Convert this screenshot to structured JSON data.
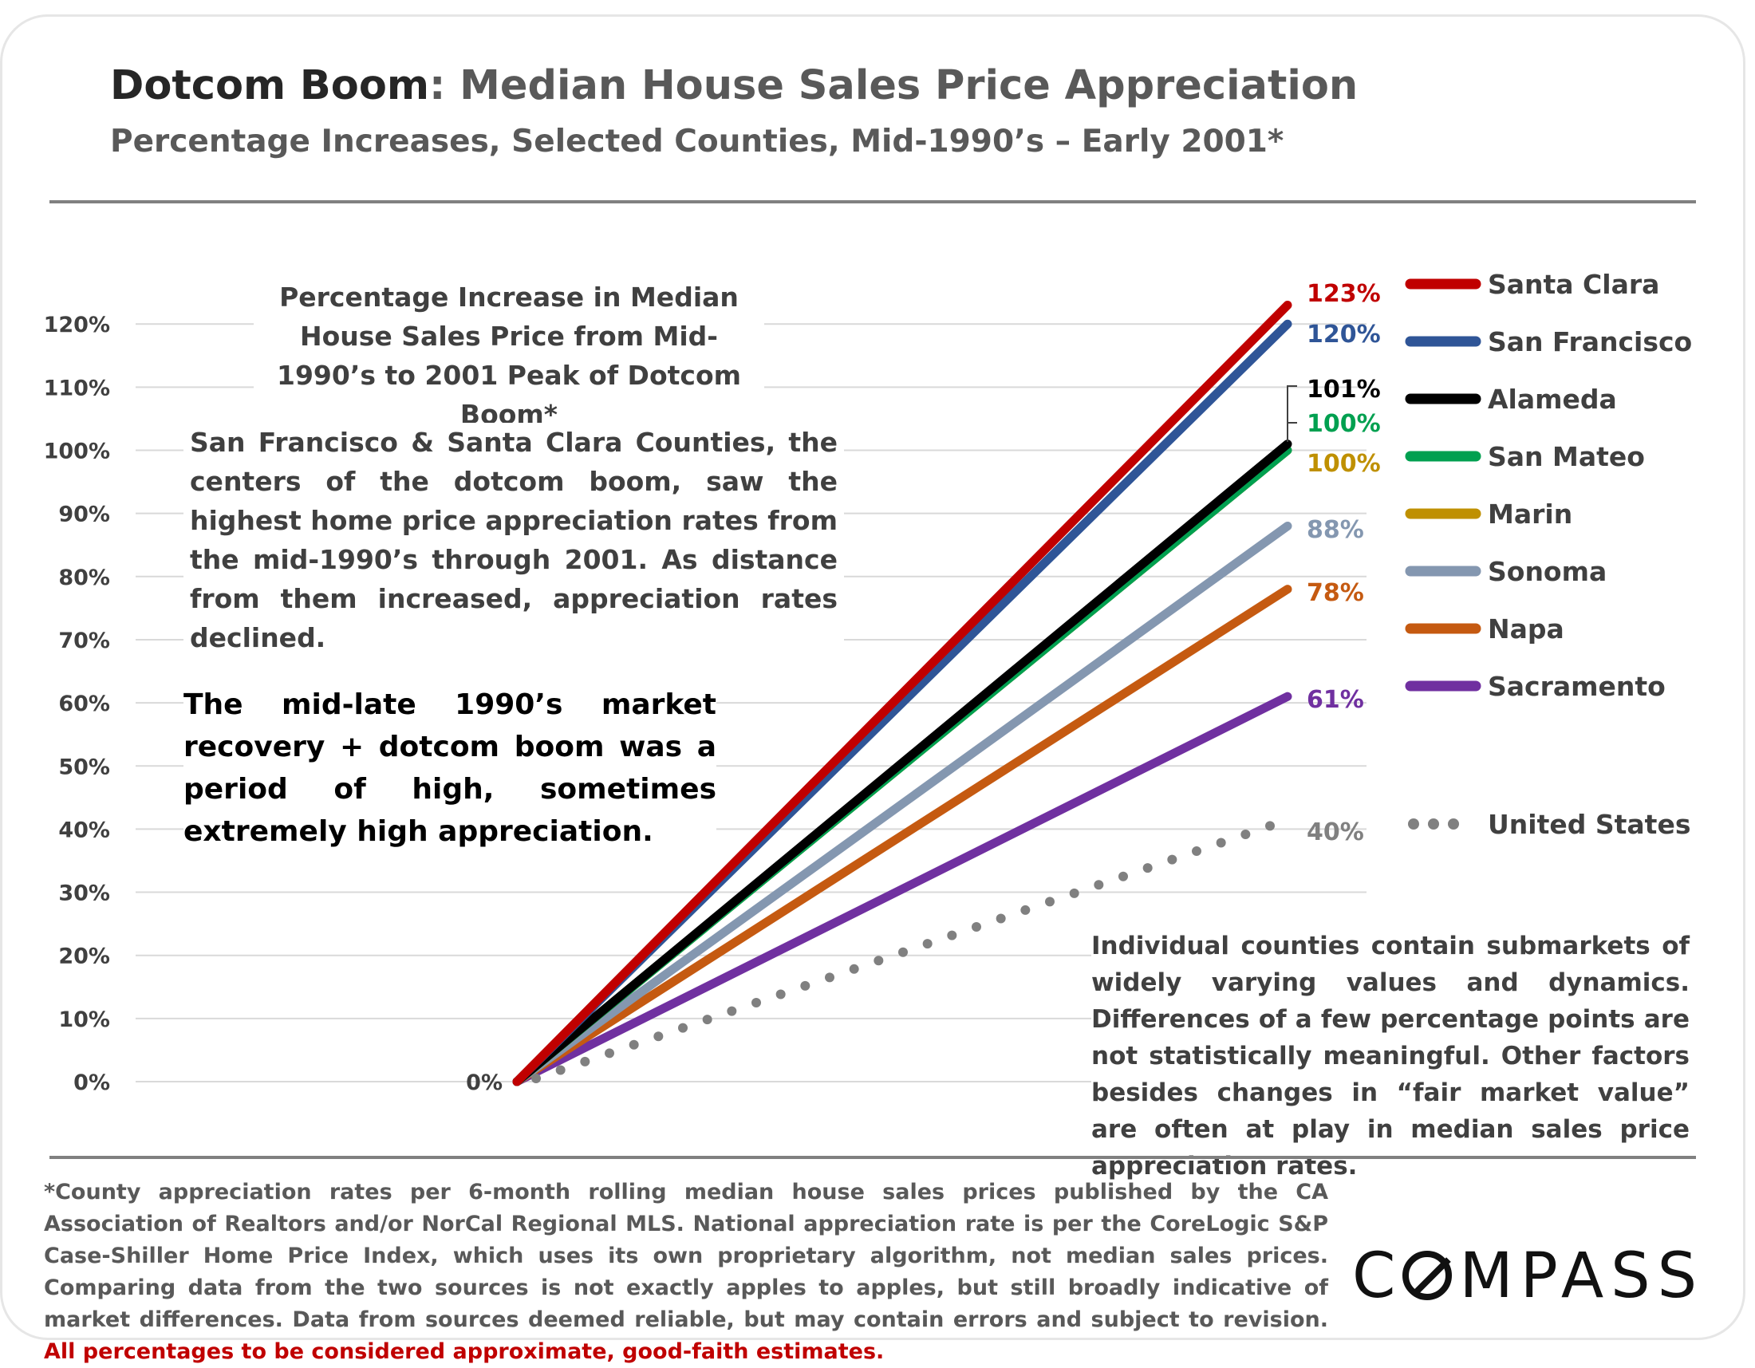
{
  "header": {
    "title_lead": "Dotcom Boom",
    "title_rest": ": Median House Sales Price Appreciation",
    "subtitle": "Percentage Increases, Selected Counties, Mid-1990’s – Early 2001*"
  },
  "chart_data": {
    "type": "line",
    "title": "Percentage Increase in Median House Sales Price from Mid-1990’s to 2001 Peak of Dotcom Boom*",
    "ylim": [
      0,
      120
    ],
    "y_ticks": [
      "0%",
      "10%",
      "20%",
      "30%",
      "40%",
      "50%",
      "60%",
      "70%",
      "80%",
      "90%",
      "100%",
      "110%",
      "120%"
    ],
    "grid": true,
    "legend_position": "right",
    "start_label": "0%",
    "series": [
      {
        "name": "Santa Clara",
        "start": 0,
        "end": 123,
        "end_label": "123%",
        "color": "#c00000",
        "style": "solid"
      },
      {
        "name": "San Francisco",
        "start": 0,
        "end": 120,
        "end_label": "120%",
        "color": "#2f5597",
        "style": "solid"
      },
      {
        "name": "Alameda",
        "start": 0,
        "end": 101,
        "end_label": "101%",
        "color": "#000000",
        "style": "solid"
      },
      {
        "name": "San Mateo",
        "start": 0,
        "end": 100,
        "end_label": "100%",
        "color": "#00a050",
        "style": "solid"
      },
      {
        "name": "Marin",
        "start": 0,
        "end": 100,
        "end_label": "100%",
        "color": "#bf9000",
        "style": "solid"
      },
      {
        "name": "Sonoma",
        "start": 0,
        "end": 88,
        "end_label": "88%",
        "color": "#8497b0",
        "style": "solid"
      },
      {
        "name": "Napa",
        "start": 0,
        "end": 78,
        "end_label": "78%",
        "color": "#c55a11",
        "style": "solid"
      },
      {
        "name": "Sacramento",
        "start": 0,
        "end": 61,
        "end_label": "61%",
        "color": "#7030a0",
        "style": "solid"
      },
      {
        "name": "United States",
        "start": 0,
        "end": 40,
        "end_label": "40%",
        "color": "#808080",
        "style": "dotted"
      }
    ]
  },
  "notes": {
    "dotcom": "San Francisco & Santa Clara Counties, the centers of the dotcom boom, saw the highest home price appreciation rates from the mid-1990’s through 2001. As distance from them increased, appreciation rates declined.",
    "recovery": "The mid-late 1990’s market recovery + dotcom boom was a period of high, sometimes extremely high appreciation.",
    "counties": "Individual counties contain submarkets of widely varying values and dynamics. Differences of a few percentage points are not statistically meaningful. Other factors besides changes in “fair market value” are often at play in median sales price appreciation rates."
  },
  "footnote": {
    "text": "*County appreciation rates per 6-month rolling median house sales prices published by the CA Association of Realtors and/or NorCal Regional MLS. National appreciation rate is per the CoreLogic S&P Case-Shiller Home Price Index, which uses its own proprietary algorithm, not median sales prices. Comparing data from the two sources is not exactly apples to apples, but still broadly indicative of market differences. Data from sources deemed reliable, but may contain errors and subject to revision. ",
    "warning": "All percentages to be considered approximate, good-faith estimates."
  },
  "brand": {
    "logo_rest": "MPASS",
    "logo_full": "COMPASS"
  }
}
